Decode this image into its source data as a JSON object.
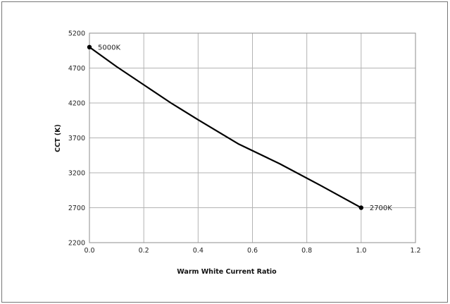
{
  "chart_data": {
    "type": "line",
    "title": "",
    "xlabel": "Warm White Current Ratio",
    "ylabel": "CCT (K)",
    "xlim": [
      0.0,
      1.2
    ],
    "ylim": [
      2200,
      5200
    ],
    "xticks": [
      0.0,
      0.2,
      0.4,
      0.6,
      0.8,
      1.0,
      1.2
    ],
    "yticks": [
      2200,
      2700,
      3200,
      3700,
      4200,
      4700,
      5200
    ],
    "xtick_labels": [
      "0.0",
      "0.2",
      "0.4",
      "0.6",
      "0.8",
      "1.0",
      "1.2"
    ],
    "ytick_labels": [
      "2200",
      "2700",
      "3200",
      "3700",
      "4200",
      "4700",
      "5200"
    ],
    "grid": true,
    "legend": "none",
    "line_color": "#000000",
    "series": [
      {
        "x": [
          0.0,
          0.1,
          0.2,
          0.3,
          0.4,
          0.55,
          0.7,
          0.85,
          1.0
        ],
        "y": [
          5000,
          4720,
          4460,
          4200,
          3960,
          3610,
          3330,
          3020,
          2700
        ]
      }
    ],
    "annotations": [
      {
        "x": 0.0,
        "y": 5000,
        "text": "5000K"
      },
      {
        "x": 1.0,
        "y": 2700,
        "text": "2700K"
      }
    ]
  }
}
